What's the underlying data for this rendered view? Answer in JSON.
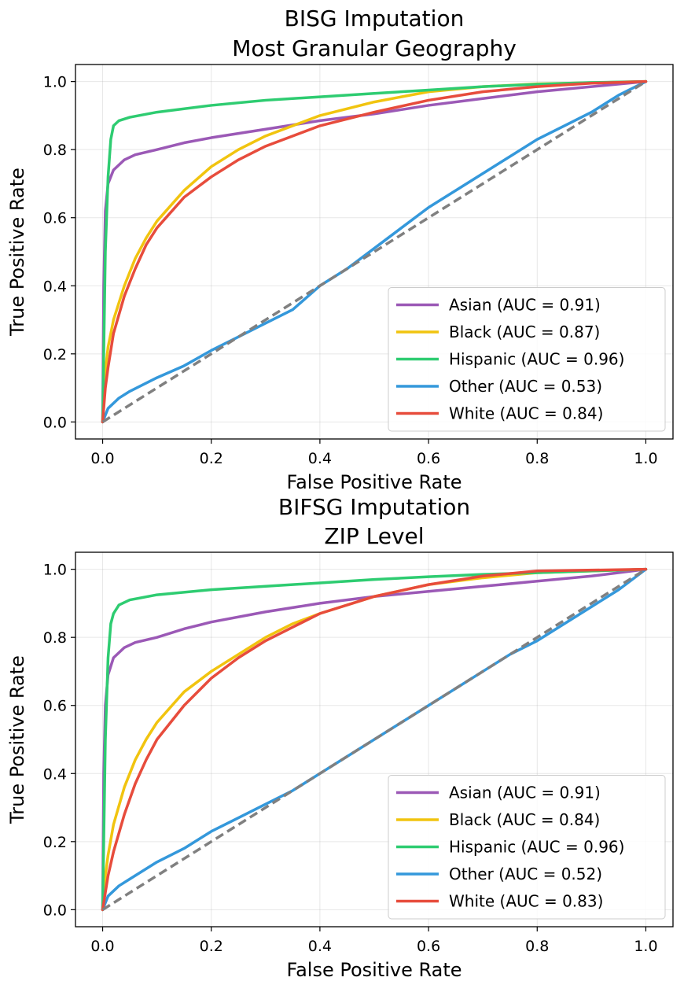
{
  "chart_data": [
    {
      "type": "line",
      "title": "BISG Imputation\nMost Granular Geography",
      "title_lines": [
        "BISG Imputation",
        "Most Granular Geography"
      ],
      "xlabel": "False Positive Rate",
      "ylabel": "True Positive Rate",
      "xlim": [
        -0.05,
        1.05
      ],
      "ylim": [
        -0.05,
        1.05
      ],
      "xticks": [
        "0.0",
        "0.2",
        "0.4",
        "0.6",
        "0.8",
        "1.0"
      ],
      "yticks": [
        "0.0",
        "0.2",
        "0.4",
        "0.6",
        "0.8",
        "1.0"
      ],
      "grid": true,
      "legend_position": "lower-right",
      "reference_line": {
        "style": "dashed",
        "color": "#808080",
        "points": [
          [
            0,
            0
          ],
          [
            1,
            1
          ]
        ]
      },
      "series": [
        {
          "name": "Asian (AUC = 0.91)",
          "color": "#9b59b6",
          "points": [
            [
              0,
              0
            ],
            [
              0.002,
              0.4
            ],
            [
              0.005,
              0.62
            ],
            [
              0.01,
              0.7
            ],
            [
              0.02,
              0.74
            ],
            [
              0.04,
              0.77
            ],
            [
              0.06,
              0.785
            ],
            [
              0.1,
              0.8
            ],
            [
              0.15,
              0.82
            ],
            [
              0.2,
              0.835
            ],
            [
              0.3,
              0.86
            ],
            [
              0.4,
              0.885
            ],
            [
              0.5,
              0.905
            ],
            [
              0.6,
              0.93
            ],
            [
              0.7,
              0.95
            ],
            [
              0.8,
              0.97
            ],
            [
              0.9,
              0.985
            ],
            [
              1,
              1
            ]
          ]
        },
        {
          "name": "Black (AUC = 0.87)",
          "color": "#f1c40f",
          "points": [
            [
              0,
              0
            ],
            [
              0.005,
              0.15
            ],
            [
              0.01,
              0.22
            ],
            [
              0.02,
              0.3
            ],
            [
              0.04,
              0.4
            ],
            [
              0.06,
              0.48
            ],
            [
              0.08,
              0.54
            ],
            [
              0.1,
              0.59
            ],
            [
              0.15,
              0.68
            ],
            [
              0.2,
              0.75
            ],
            [
              0.25,
              0.8
            ],
            [
              0.3,
              0.84
            ],
            [
              0.35,
              0.87
            ],
            [
              0.4,
              0.9
            ],
            [
              0.5,
              0.94
            ],
            [
              0.6,
              0.97
            ],
            [
              0.7,
              0.985
            ],
            [
              0.8,
              0.993
            ],
            [
              1,
              1
            ]
          ]
        },
        {
          "name": "Hispanic (AUC = 0.96)",
          "color": "#2ecc71",
          "points": [
            [
              0,
              0
            ],
            [
              0.005,
              0.5
            ],
            [
              0.01,
              0.72
            ],
            [
              0.015,
              0.83
            ],
            [
              0.02,
              0.87
            ],
            [
              0.03,
              0.885
            ],
            [
              0.05,
              0.895
            ],
            [
              0.1,
              0.91
            ],
            [
              0.2,
              0.93
            ],
            [
              0.3,
              0.945
            ],
            [
              0.4,
              0.955
            ],
            [
              0.5,
              0.965
            ],
            [
              0.6,
              0.975
            ],
            [
              0.7,
              0.985
            ],
            [
              0.8,
              0.992
            ],
            [
              0.9,
              0.997
            ],
            [
              1,
              1
            ]
          ]
        },
        {
          "name": "Other (AUC = 0.53)",
          "color": "#3498db",
          "points": [
            [
              0,
              0
            ],
            [
              0.01,
              0.04
            ],
            [
              0.03,
              0.07
            ],
            [
              0.05,
              0.09
            ],
            [
              0.1,
              0.13
            ],
            [
              0.15,
              0.165
            ],
            [
              0.2,
              0.21
            ],
            [
              0.25,
              0.25
            ],
            [
              0.3,
              0.29
            ],
            [
              0.35,
              0.33
            ],
            [
              0.4,
              0.4
            ],
            [
              0.45,
              0.45
            ],
            [
              0.5,
              0.51
            ],
            [
              0.55,
              0.57
            ],
            [
              0.6,
              0.63
            ],
            [
              0.65,
              0.68
            ],
            [
              0.7,
              0.73
            ],
            [
              0.75,
              0.78
            ],
            [
              0.8,
              0.83
            ],
            [
              0.85,
              0.87
            ],
            [
              0.9,
              0.91
            ],
            [
              0.95,
              0.96
            ],
            [
              1,
              1
            ]
          ]
        },
        {
          "name": "White (AUC = 0.84)",
          "color": "#e74c3c",
          "points": [
            [
              0,
              0
            ],
            [
              0.005,
              0.1
            ],
            [
              0.01,
              0.16
            ],
            [
              0.02,
              0.26
            ],
            [
              0.04,
              0.37
            ],
            [
              0.06,
              0.45
            ],
            [
              0.08,
              0.52
            ],
            [
              0.1,
              0.57
            ],
            [
              0.15,
              0.66
            ],
            [
              0.2,
              0.72
            ],
            [
              0.25,
              0.77
            ],
            [
              0.3,
              0.81
            ],
            [
              0.35,
              0.84
            ],
            [
              0.4,
              0.87
            ],
            [
              0.5,
              0.91
            ],
            [
              0.6,
              0.945
            ],
            [
              0.7,
              0.97
            ],
            [
              0.8,
              0.985
            ],
            [
              0.9,
              0.995
            ],
            [
              1,
              1
            ]
          ]
        }
      ]
    },
    {
      "type": "line",
      "title": "BIFSG Imputation\nZIP Level",
      "title_lines": [
        "BIFSG Imputation",
        "ZIP Level"
      ],
      "xlabel": "False Positive Rate",
      "ylabel": "True Positive Rate",
      "xlim": [
        -0.05,
        1.05
      ],
      "ylim": [
        -0.05,
        1.05
      ],
      "xticks": [
        "0.0",
        "0.2",
        "0.4",
        "0.6",
        "0.8",
        "1.0"
      ],
      "yticks": [
        "0.0",
        "0.2",
        "0.4",
        "0.6",
        "0.8",
        "1.0"
      ],
      "grid": true,
      "legend_position": "lower-right",
      "reference_line": {
        "style": "dashed",
        "color": "#808080",
        "points": [
          [
            0,
            0
          ],
          [
            1,
            1
          ]
        ]
      },
      "series": [
        {
          "name": "Asian (AUC = 0.91)",
          "color": "#9b59b6",
          "points": [
            [
              0,
              0
            ],
            [
              0.002,
              0.4
            ],
            [
              0.005,
              0.6
            ],
            [
              0.01,
              0.69
            ],
            [
              0.02,
              0.74
            ],
            [
              0.04,
              0.77
            ],
            [
              0.06,
              0.785
            ],
            [
              0.1,
              0.8
            ],
            [
              0.15,
              0.825
            ],
            [
              0.2,
              0.845
            ],
            [
              0.3,
              0.875
            ],
            [
              0.4,
              0.9
            ],
            [
              0.5,
              0.92
            ],
            [
              0.6,
              0.935
            ],
            [
              0.7,
              0.95
            ],
            [
              0.8,
              0.965
            ],
            [
              0.9,
              0.98
            ],
            [
              1,
              1
            ]
          ]
        },
        {
          "name": "Black (AUC = 0.84)",
          "color": "#f1c40f",
          "points": [
            [
              0,
              0
            ],
            [
              0.005,
              0.1
            ],
            [
              0.01,
              0.16
            ],
            [
              0.02,
              0.25
            ],
            [
              0.04,
              0.36
            ],
            [
              0.06,
              0.44
            ],
            [
              0.08,
              0.5
            ],
            [
              0.1,
              0.55
            ],
            [
              0.15,
              0.64
            ],
            [
              0.2,
              0.7
            ],
            [
              0.25,
              0.75
            ],
            [
              0.3,
              0.8
            ],
            [
              0.35,
              0.84
            ],
            [
              0.4,
              0.87
            ],
            [
              0.5,
              0.92
            ],
            [
              0.6,
              0.955
            ],
            [
              0.7,
              0.975
            ],
            [
              0.8,
              0.99
            ],
            [
              1,
              1
            ]
          ]
        },
        {
          "name": "Hispanic (AUC = 0.96)",
          "color": "#2ecc71",
          "points": [
            [
              0,
              0
            ],
            [
              0.005,
              0.5
            ],
            [
              0.01,
              0.74
            ],
            [
              0.015,
              0.84
            ],
            [
              0.02,
              0.87
            ],
            [
              0.03,
              0.895
            ],
            [
              0.05,
              0.91
            ],
            [
              0.1,
              0.925
            ],
            [
              0.2,
              0.94
            ],
            [
              0.3,
              0.95
            ],
            [
              0.4,
              0.96
            ],
            [
              0.5,
              0.97
            ],
            [
              0.6,
              0.978
            ],
            [
              0.7,
              0.985
            ],
            [
              0.8,
              0.99
            ],
            [
              0.9,
              0.995
            ],
            [
              1,
              1
            ]
          ]
        },
        {
          "name": "Other (AUC = 0.52)",
          "color": "#3498db",
          "points": [
            [
              0,
              0
            ],
            [
              0.01,
              0.04
            ],
            [
              0.03,
              0.07
            ],
            [
              0.05,
              0.09
            ],
            [
              0.1,
              0.14
            ],
            [
              0.15,
              0.18
            ],
            [
              0.2,
              0.23
            ],
            [
              0.25,
              0.27
            ],
            [
              0.3,
              0.31
            ],
            [
              0.35,
              0.35
            ],
            [
              0.4,
              0.4
            ],
            [
              0.45,
              0.45
            ],
            [
              0.5,
              0.5
            ],
            [
              0.55,
              0.55
            ],
            [
              0.6,
              0.6
            ],
            [
              0.65,
              0.65
            ],
            [
              0.7,
              0.7
            ],
            [
              0.75,
              0.75
            ],
            [
              0.8,
              0.79
            ],
            [
              0.85,
              0.84
            ],
            [
              0.9,
              0.89
            ],
            [
              0.95,
              0.94
            ],
            [
              1,
              1
            ]
          ]
        },
        {
          "name": "White (AUC = 0.83)",
          "color": "#e74c3c",
          "points": [
            [
              0,
              0
            ],
            [
              0.005,
              0.05
            ],
            [
              0.01,
              0.1
            ],
            [
              0.02,
              0.17
            ],
            [
              0.04,
              0.28
            ],
            [
              0.06,
              0.37
            ],
            [
              0.08,
              0.44
            ],
            [
              0.1,
              0.5
            ],
            [
              0.15,
              0.6
            ],
            [
              0.2,
              0.68
            ],
            [
              0.25,
              0.74
            ],
            [
              0.3,
              0.79
            ],
            [
              0.35,
              0.83
            ],
            [
              0.4,
              0.87
            ],
            [
              0.5,
              0.92
            ],
            [
              0.6,
              0.955
            ],
            [
              0.7,
              0.98
            ],
            [
              0.8,
              0.995
            ],
            [
              1,
              1
            ]
          ]
        }
      ]
    }
  ]
}
